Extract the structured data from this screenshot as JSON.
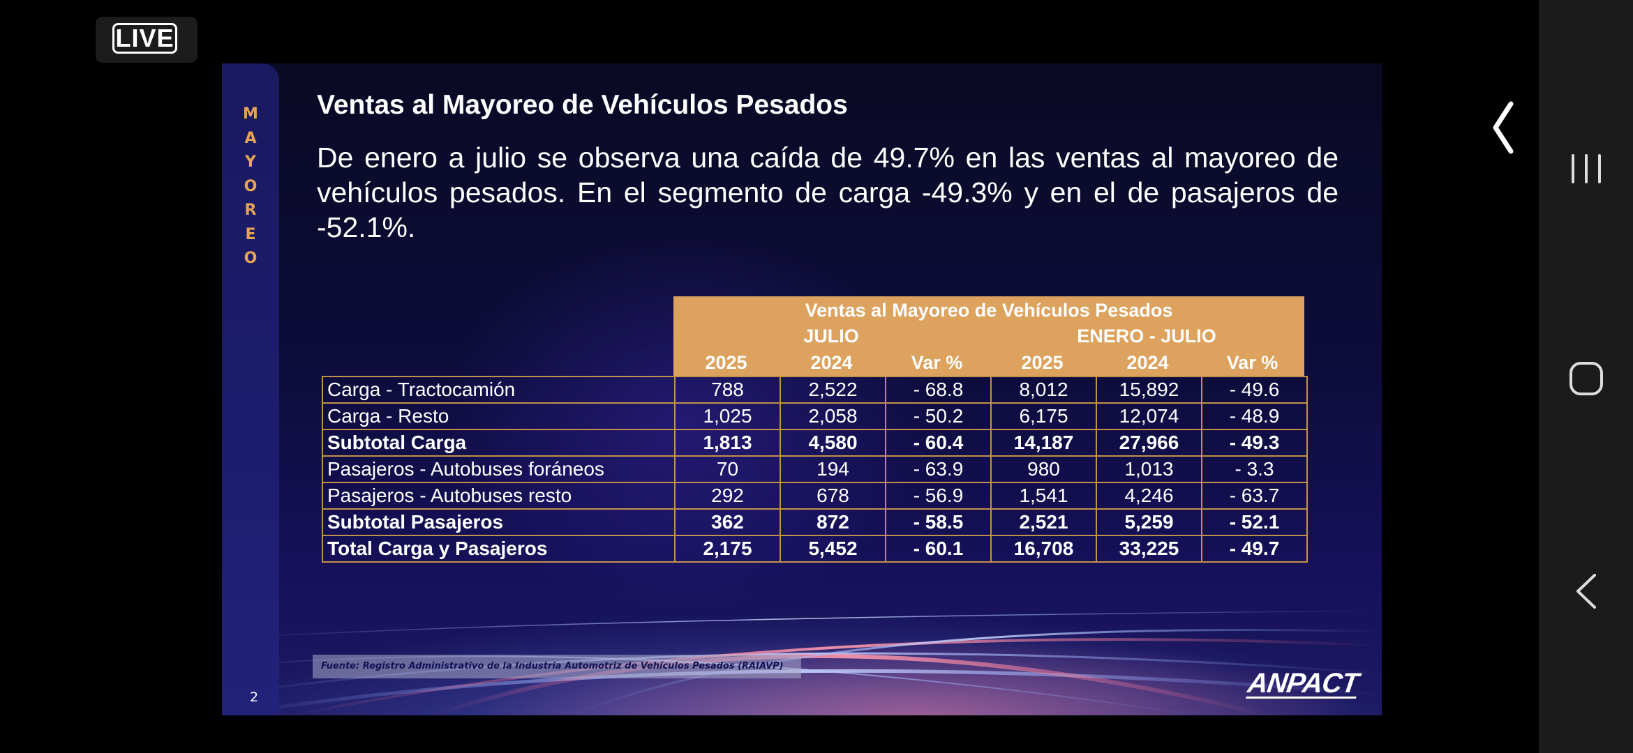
{
  "live_badge": "LIVE",
  "slide": {
    "sidebar_label": "MAYOREO",
    "title": "Ventas al Mayoreo de Vehículos Pesados",
    "description": "De enero a julio se observa una caída de 49.7% en las ventas al mayoreo de vehículos pesados. En el segmento de carga -49.3% y en el de pasajeros de -52.1%.",
    "table": {
      "title": "Ventas al Mayoreo de Vehículos Pesados",
      "group_julio": "JULIO",
      "group_enero_julio": "ENERO - JULIO",
      "columns": [
        "2025",
        "2024",
        "Var %",
        "2025",
        "2024",
        "Var %"
      ],
      "rows": [
        {
          "label": "Carga - Tractocamión",
          "values": [
            "788",
            "2,522",
            "- 68.8",
            "8,012",
            "15,892",
            "- 49.6"
          ],
          "bold": false
        },
        {
          "label": "Carga - Resto",
          "values": [
            "1,025",
            "2,058",
            "- 50.2",
            "6,175",
            "12,074",
            "- 48.9"
          ],
          "bold": false
        },
        {
          "label": "Subtotal Carga",
          "values": [
            "1,813",
            "4,580",
            "- 60.4",
            "14,187",
            "27,966",
            "- 49.3"
          ],
          "bold": true
        },
        {
          "label": "Pasajeros - Autobuses foráneos",
          "values": [
            "70",
            "194",
            "- 63.9",
            "980",
            "1,013",
            "- 3.3"
          ],
          "bold": false
        },
        {
          "label": "Pasajeros - Autobuses resto",
          "values": [
            "292",
            "678",
            "- 56.9",
            "1,541",
            "4,246",
            "- 63.7"
          ],
          "bold": false
        },
        {
          "label": "Subtotal Pasajeros",
          "values": [
            "362",
            "872",
            "- 58.5",
            "2,521",
            "5,259",
            "- 52.1"
          ],
          "bold": true
        },
        {
          "label": "Total Carga y Pasajeros",
          "values": [
            "2,175",
            "5,452",
            "- 60.1",
            "16,708",
            "33,225",
            "- 49.7"
          ],
          "bold": true
        }
      ]
    },
    "source": "Fuente: Registro Administrativo de la Industria Automotriz de Vehículos Pesados (RAIAVP)",
    "page_number": "2",
    "logo": "ANPACT"
  },
  "icons": {
    "collapse": "chevron-left-icon",
    "recents": "recents-icon",
    "home": "home-icon",
    "back": "back-icon"
  },
  "colors": {
    "accent_gold": "#dca25e",
    "sidebar_text": "#e8a454",
    "slide_bg": "#0d0c3a",
    "navbar_bg": "#1b1b1b"
  }
}
